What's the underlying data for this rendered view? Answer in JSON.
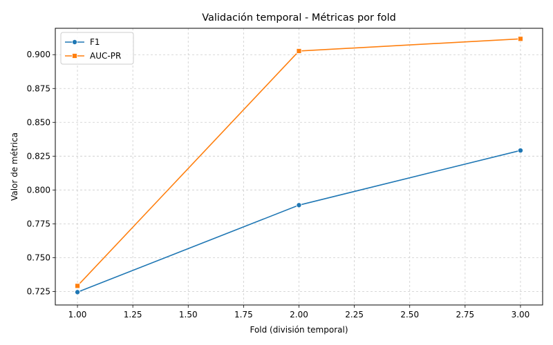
{
  "chart_data": {
    "type": "line",
    "title": "Validación temporal - Métricas por fold",
    "xlabel": "Fold (división temporal)",
    "ylabel": "Valor de métrica",
    "xlim": [
      0.9,
      3.1
    ],
    "ylim": [
      0.715,
      0.9195
    ],
    "xticks": [
      1.0,
      1.25,
      1.5,
      1.75,
      2.0,
      2.25,
      2.5,
      2.75,
      3.0
    ],
    "xtick_labels": [
      "1.00",
      "1.25",
      "1.50",
      "1.75",
      "2.00",
      "2.25",
      "2.50",
      "2.75",
      "3.00"
    ],
    "yticks": [
      0.725,
      0.75,
      0.775,
      0.8,
      0.825,
      0.85,
      0.875,
      0.9
    ],
    "ytick_labels": [
      "0.725",
      "0.750",
      "0.775",
      "0.800",
      "0.825",
      "0.850",
      "0.875",
      "0.900"
    ],
    "grid": true,
    "legend_position": "top-left",
    "x": [
      1,
      2,
      3
    ],
    "series": [
      {
        "name": "F1",
        "values": [
          0.7245,
          0.7888,
          0.8292
        ],
        "color": "#1f77b4",
        "marker": "circle"
      },
      {
        "name": "AUC-PR",
        "values": [
          0.7291,
          0.9027,
          0.9117
        ],
        "color": "#ff7f0e",
        "marker": "square"
      }
    ]
  }
}
